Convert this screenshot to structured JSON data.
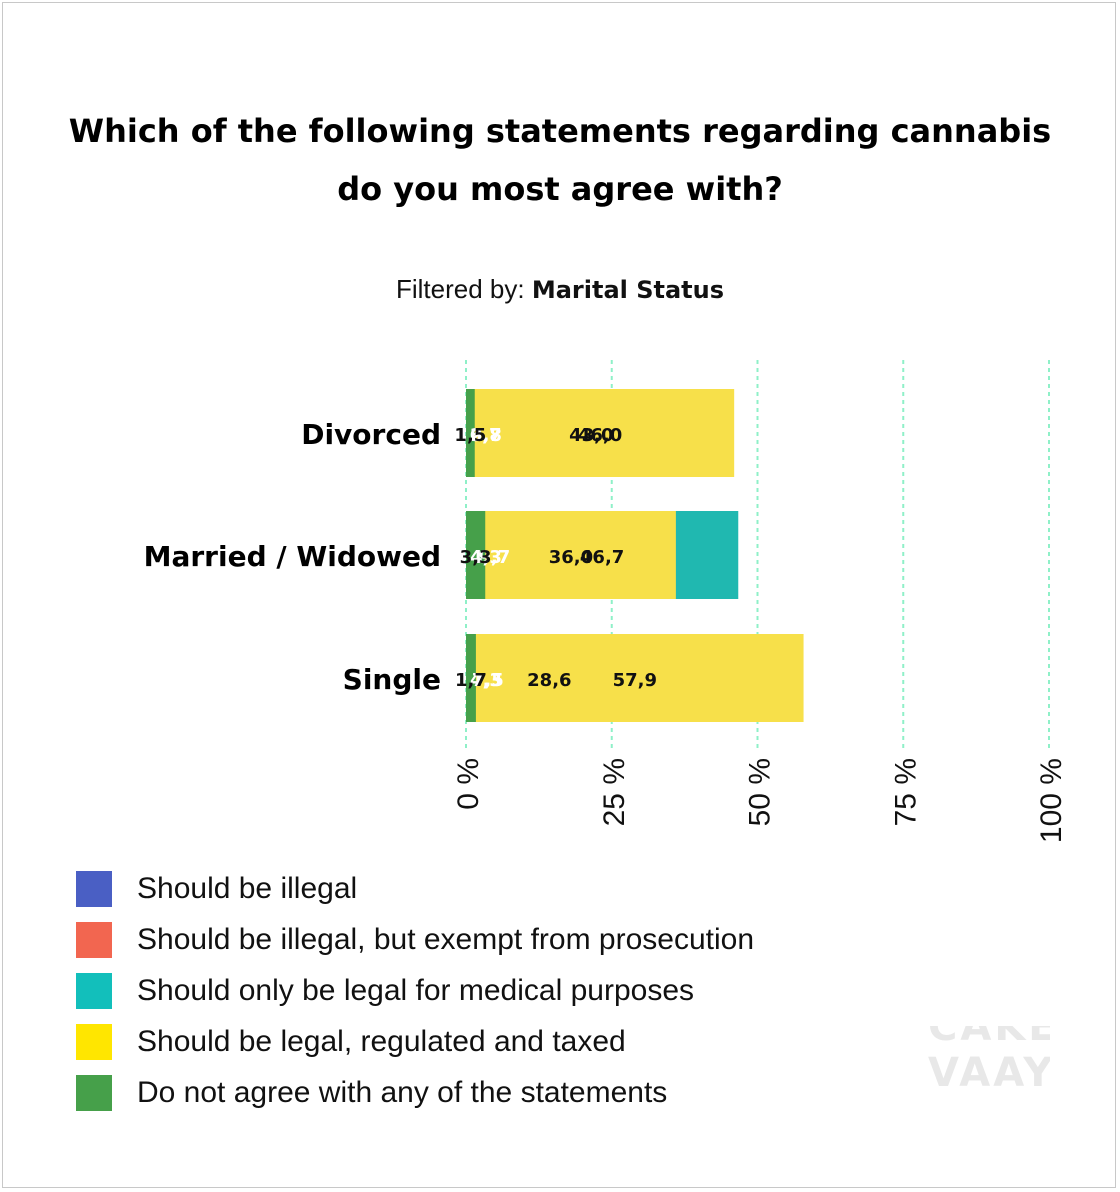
{
  "title_line1": "Which of the following statements regarding cannabis",
  "title_line2": "do you most agree with?",
  "filter_label": "Filtered by:",
  "filter_value": "Marital Status",
  "watermark_top": "CAKE",
  "watermark_bottom": "VAAY",
  "chart_data": {
    "type": "bar",
    "orientation": "horizontal",
    "stacked": true,
    "title": "Which of the following statements regarding cannabis do you most agree with?",
    "categories": [
      "Divorced",
      "Married / Widowed",
      "Single"
    ],
    "series": [
      {
        "name": "Should be illegal",
        "color": "#4a5fc4",
        "label_color": "#ffffff",
        "values": [
          6.7,
          9.7,
          7.5
        ],
        "labels": [
          "6,7",
          "9,7",
          "7,5"
        ]
      },
      {
        "name": "Should be illegal, but exempt from prosecution",
        "color": "#f26650",
        "label_color": "#ffffff",
        "values": [
          2.8,
          4.3,
          4.3
        ],
        "labels": [
          "2,8",
          "4,3",
          "4,3"
        ]
      },
      {
        "name": "Should only be legal for medical purposes",
        "color": "#20b8b0",
        "label_color": "#111111",
        "values": [
          43.0,
          46.7,
          28.6
        ],
        "labels": [
          "43,0",
          "46,7",
          "28,6"
        ]
      },
      {
        "name": "Should be legal, regulated and taxed",
        "color": "#f7e04a",
        "label_color": "#111111",
        "values": [
          46.0,
          36.0,
          57.9
        ],
        "labels": [
          "46,0",
          "36,0",
          "57,9"
        ]
      },
      {
        "name": "Do not agree with any of the statements",
        "color": "#46a04a",
        "label_color": "#111111",
        "values": [
          1.5,
          3.3,
          1.7
        ],
        "labels": [
          "1,5",
          "3,3",
          "1,7"
        ]
      }
    ],
    "xlim": [
      0,
      100
    ],
    "xticks": [
      "0 %",
      "25 %",
      "50 %",
      "75 %",
      "100 %"
    ],
    "xtick_values": [
      0,
      25,
      50,
      75,
      100
    ],
    "grid": "vertical dashed",
    "legend_position": "bottom-left",
    "legend": [
      {
        "label": "Should be illegal",
        "color": "#4a5fc4"
      },
      {
        "label": "Should be illegal, but exempt from prosecution",
        "color": "#f26650"
      },
      {
        "label": "Should only be legal for medical purposes",
        "color": "#12bfbb"
      },
      {
        "label": "Should be legal, regulated and taxed",
        "color": "#ffe600"
      },
      {
        "label": "Do not agree with any of the statements",
        "color": "#46a04a"
      }
    ]
  }
}
